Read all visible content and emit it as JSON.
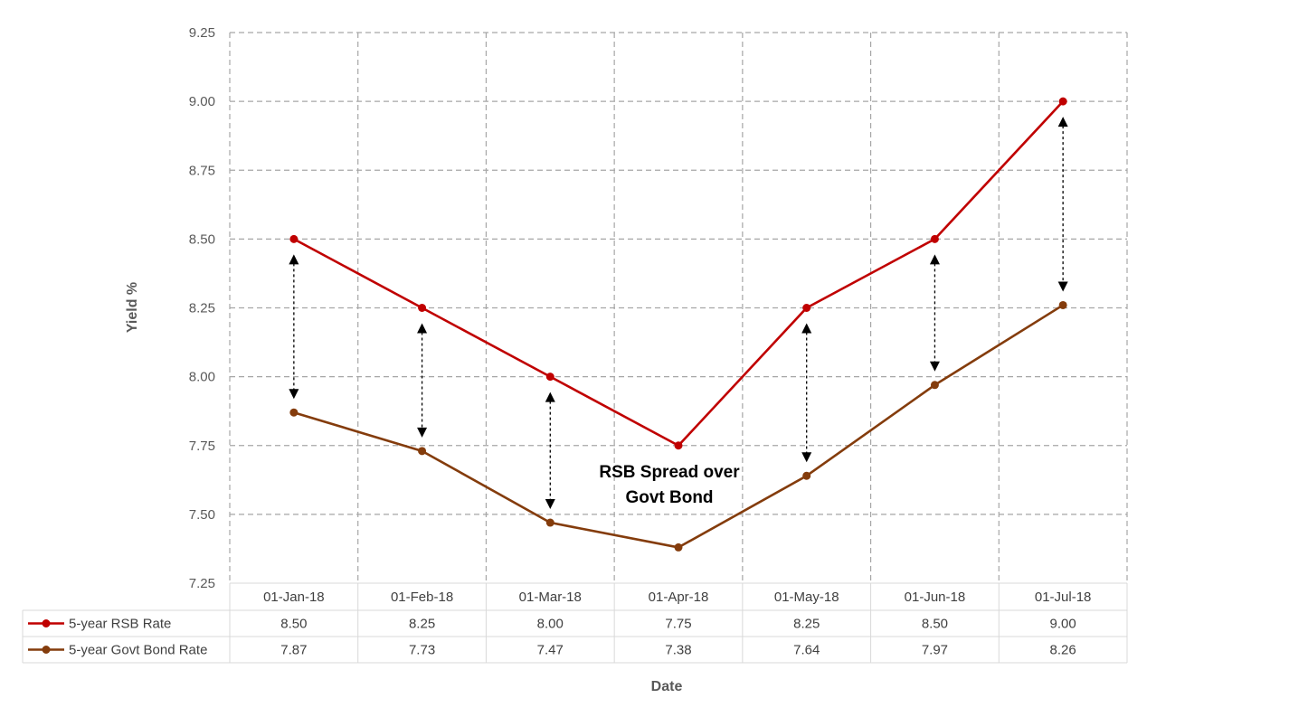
{
  "chart_data": {
    "type": "line",
    "categories": [
      "01-Jan-18",
      "01-Feb-18",
      "01-Mar-18",
      "01-Apr-18",
      "01-May-18",
      "01-Jun-18",
      "01-Jul-18"
    ],
    "series": [
      {
        "name": "5-year RSB Rate",
        "color": "#c00000",
        "values": [
          8.5,
          8.25,
          8.0,
          7.75,
          8.25,
          8.5,
          9.0
        ]
      },
      {
        "name": "5-year Govt Bond Rate",
        "color": "#843c0c",
        "values": [
          7.87,
          7.73,
          7.47,
          7.38,
          7.64,
          7.97,
          8.26
        ]
      }
    ],
    "table_values": [
      [
        "8.50",
        "8.25",
        "8.00",
        "7.75",
        "8.25",
        "8.50",
        "9.00"
      ],
      [
        "7.87",
        "7.73",
        "7.47",
        "7.38",
        "7.64",
        "7.97",
        "8.26"
      ]
    ],
    "yticks": [
      "7.25",
      "7.50",
      "7.75",
      "8.00",
      "8.25",
      "8.50",
      "8.75",
      "9.00",
      "9.25"
    ],
    "ylim": [
      7.25,
      9.25
    ],
    "ylabel": "Yield %",
    "xlabel": "Date",
    "annotation_line1": "RSB Spread over",
    "annotation_line2": "Govt Bond",
    "spread_arrows": [
      "01-Jan-18",
      "01-Feb-18",
      "01-Mar-18",
      "01-May-18",
      "01-Jun-18",
      "01-Jul-18"
    ],
    "grid": true,
    "legend": "data-table"
  }
}
